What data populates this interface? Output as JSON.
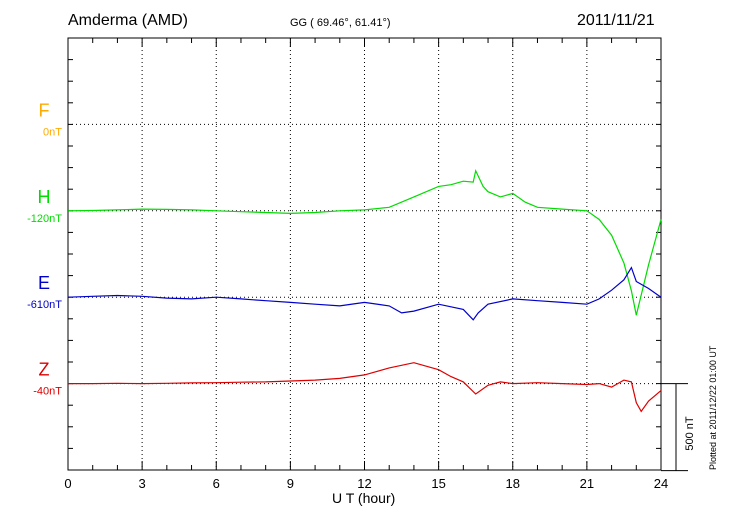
{
  "header": {
    "station": "Amderma (AMD)",
    "coords": "GG ( 69.46°,  61.41°)",
    "date": "2011/11/21"
  },
  "footer": {
    "plotted": "Plotted at 2011/12/22 01:00 UT"
  },
  "chart_data": {
    "type": "line",
    "xlabel": "U T (hour)",
    "xlim": [
      0,
      24
    ],
    "xticks": [
      0,
      3,
      6,
      9,
      12,
      15,
      18,
      21,
      24
    ],
    "scale_bar": {
      "label": "500 nT",
      "value_nT": 500
    },
    "series": [
      {
        "name": "F",
        "baseline_label": "0nT",
        "color": "#ffaa00",
        "x": [],
        "y": []
      },
      {
        "name": "H",
        "baseline_label": "-120nT",
        "color": "#00dd00",
        "x": [
          0,
          1,
          2,
          3,
          4,
          5,
          6,
          7,
          8,
          9,
          10,
          11,
          12,
          13,
          14,
          15,
          15.5,
          16,
          16.4,
          16.5,
          16.8,
          17,
          17.5,
          18,
          18.5,
          19,
          20,
          21,
          21.5,
          22,
          22.5,
          22.8,
          23,
          23.5,
          24
        ],
        "y": [
          -120,
          -118,
          -115,
          -110,
          -112,
          -115,
          -120,
          -125,
          -130,
          -135,
          -130,
          -120,
          -115,
          -100,
          -40,
          20,
          30,
          50,
          45,
          110,
          20,
          -10,
          -40,
          -20,
          -70,
          -100,
          -110,
          -120,
          -170,
          -260,
          -420,
          -580,
          -720,
          -430,
          -170
        ]
      },
      {
        "name": "E",
        "baseline_label": "-610nT",
        "color": "#0000cc",
        "x": [
          0,
          1,
          2,
          3,
          4,
          5,
          6,
          7,
          8,
          9,
          10,
          11,
          12,
          13,
          13.5,
          14,
          15,
          16,
          16.4,
          16.6,
          17,
          18,
          19,
          20,
          21,
          21.5,
          22,
          22.5,
          22.8,
          23,
          23.5,
          24
        ],
        "y": [
          -610,
          -605,
          -600,
          -605,
          -615,
          -620,
          -610,
          -620,
          -630,
          -640,
          -650,
          -660,
          -640,
          -660,
          -700,
          -690,
          -650,
          -680,
          -740,
          -700,
          -650,
          -620,
          -630,
          -640,
          -650,
          -620,
          -570,
          -510,
          -440,
          -520,
          -560,
          -610
        ]
      },
      {
        "name": "Z",
        "baseline_label": "-40nT",
        "color": "#dd0000",
        "x": [
          0,
          1,
          2,
          3,
          4,
          5,
          6,
          7,
          8,
          9,
          10,
          11,
          12,
          13,
          14,
          15,
          15.5,
          16,
          16.5,
          17,
          17.5,
          18,
          19,
          20,
          21,
          21.5,
          22,
          22.5,
          22.8,
          23,
          23.2,
          23.5,
          24
        ],
        "y": [
          -40,
          -40,
          -38,
          -40,
          -38,
          -36,
          -35,
          -32,
          -30,
          -25,
          -20,
          -10,
          10,
          50,
          80,
          40,
          0,
          -30,
          -100,
          -50,
          -30,
          -40,
          -35,
          -40,
          -45,
          -40,
          -60,
          -20,
          -30,
          -150,
          -200,
          -140,
          -80
        ]
      }
    ]
  }
}
